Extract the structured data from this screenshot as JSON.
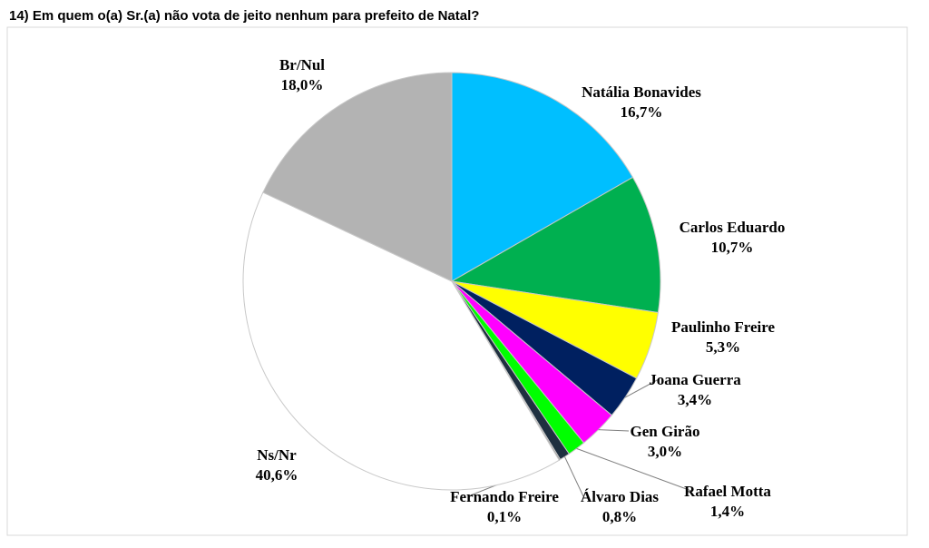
{
  "chart_data": {
    "type": "pie",
    "title": "14) Em quem o(a) Sr.(a) não vota de jeito nenhum para prefeito de Natal?",
    "categories": [
      "Natália Bonavides",
      "Carlos Eduardo",
      "Paulinho Freire",
      "Joana Guerra",
      "Gen Girão",
      "Rafael Motta",
      "Álvaro Dias",
      "Fernando Freire",
      "Ns/Nr",
      "Br/Nul"
    ],
    "values": [
      16.7,
      10.7,
      5.3,
      3.4,
      3.0,
      1.4,
      0.8,
      0.1,
      40.6,
      18.0
    ],
    "value_labels": [
      "16,7%",
      "10,7%",
      "5,3%",
      "3,4%",
      "3,0%",
      "1,4%",
      "0,8%",
      "0,1%",
      "40,6%",
      "18,0%"
    ],
    "colors": [
      "#00bfff",
      "#00b050",
      "#ffff00",
      "#002060",
      "#ff00ff",
      "#00ff00",
      "#1f3040",
      "#7f7f7f",
      "#ffffff",
      "#b3b3b3"
    ]
  }
}
